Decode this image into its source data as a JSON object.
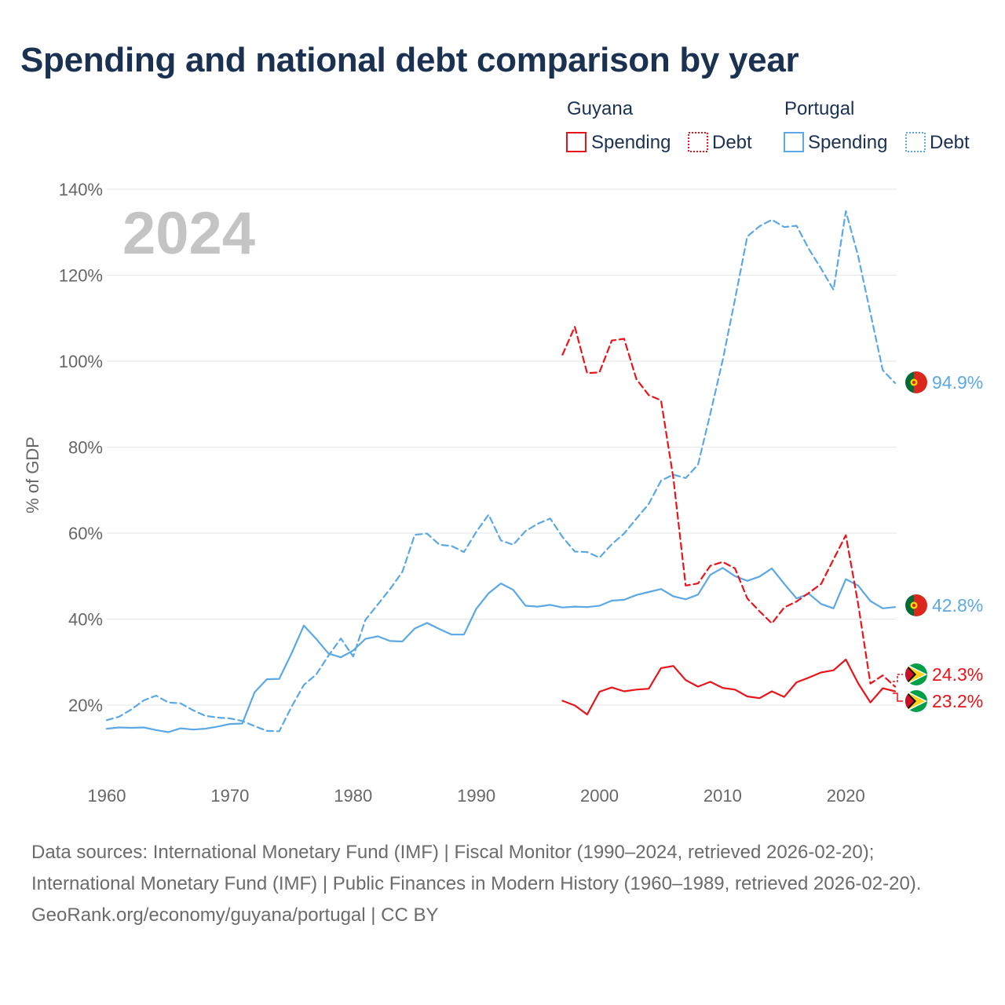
{
  "title": "Spending and national debt comparison by year",
  "year_overlay": "2024",
  "legend": {
    "groups": [
      {
        "name": "Guyana",
        "color": "#e8141a",
        "items": [
          {
            "label": "Spending",
            "style": "solid"
          },
          {
            "label": "Debt",
            "style": "dotted"
          }
        ]
      },
      {
        "name": "Portugal",
        "color": "#5ba8e5",
        "items": [
          {
            "label": "Spending",
            "style": "solid"
          },
          {
            "label": "Debt",
            "style": "dotted"
          }
        ]
      }
    ]
  },
  "chart_data": {
    "type": "line",
    "title": "Spending and national debt comparison by year",
    "xlabel": "",
    "ylabel": "% of GDP",
    "xlim": [
      1960,
      2024
    ],
    "ylim": [
      8,
      145
    ],
    "x_ticks": [
      1960,
      1970,
      1980,
      1990,
      2000,
      2010,
      2020
    ],
    "y_ticks": [
      {
        "value": 20,
        "label": "20%"
      },
      {
        "value": 40,
        "label": "40%"
      },
      {
        "value": 60,
        "label": "60%"
      },
      {
        "value": 80,
        "label": "80%"
      },
      {
        "value": 100,
        "label": "100%"
      },
      {
        "value": 120,
        "label": "120%"
      },
      {
        "value": 140,
        "label": "140%"
      }
    ],
    "grid": true,
    "series": [
      {
        "name": "Portugal Spending",
        "country": "Portugal",
        "measure": "Spending",
        "color": "#5ba8e5",
        "dash": false,
        "end_label": "42.8%",
        "points": [
          [
            1960,
            14.5
          ],
          [
            1961,
            14.8
          ],
          [
            1962,
            14.7
          ],
          [
            1963,
            14.8
          ],
          [
            1964,
            14.2
          ],
          [
            1965,
            13.7
          ],
          [
            1966,
            14.6
          ],
          [
            1967,
            14.3
          ],
          [
            1968,
            14.5
          ],
          [
            1969,
            15.0
          ],
          [
            1970,
            15.6
          ],
          [
            1971,
            15.7
          ],
          [
            1972,
            23.0
          ],
          [
            1973,
            26.0
          ],
          [
            1974,
            26.1
          ],
          [
            1975,
            32.0
          ],
          [
            1976,
            38.5
          ],
          [
            1977,
            35.4
          ],
          [
            1978,
            32.0
          ],
          [
            1979,
            31.1
          ],
          [
            1980,
            32.7
          ],
          [
            1981,
            35.4
          ],
          [
            1982,
            36.0
          ],
          [
            1983,
            34.9
          ],
          [
            1984,
            34.8
          ],
          [
            1985,
            37.8
          ],
          [
            1986,
            39.1
          ],
          [
            1987,
            37.7
          ],
          [
            1988,
            36.4
          ],
          [
            1989,
            36.4
          ],
          [
            1990,
            42.4
          ],
          [
            1991,
            46.0
          ],
          [
            1992,
            48.3
          ],
          [
            1993,
            46.8
          ],
          [
            1994,
            43.1
          ],
          [
            1995,
            42.9
          ],
          [
            1996,
            43.3
          ],
          [
            1997,
            42.7
          ],
          [
            1998,
            42.9
          ],
          [
            1999,
            42.8
          ],
          [
            2000,
            43.1
          ],
          [
            2001,
            44.3
          ],
          [
            2002,
            44.5
          ],
          [
            2003,
            45.6
          ],
          [
            2004,
            46.3
          ],
          [
            2005,
            47.0
          ],
          [
            2006,
            45.3
          ],
          [
            2007,
            44.6
          ],
          [
            2008,
            45.7
          ],
          [
            2009,
            50.3
          ],
          [
            2010,
            51.9
          ],
          [
            2011,
            50.0
          ],
          [
            2012,
            48.9
          ],
          [
            2013,
            49.9
          ],
          [
            2014,
            51.8
          ],
          [
            2015,
            48.2
          ],
          [
            2016,
            44.8
          ],
          [
            2017,
            45.9
          ],
          [
            2018,
            43.5
          ],
          [
            2019,
            42.5
          ],
          [
            2020,
            49.3
          ],
          [
            2021,
            47.8
          ],
          [
            2022,
            44.2
          ],
          [
            2023,
            42.5
          ],
          [
            2024,
            42.8
          ]
        ]
      },
      {
        "name": "Portugal Debt",
        "country": "Portugal",
        "measure": "Debt",
        "color": "#5ba8e5",
        "dash": true,
        "end_label": "94.9%",
        "points": [
          [
            1960,
            16.5
          ],
          [
            1961,
            17.3
          ],
          [
            1962,
            19.0
          ],
          [
            1963,
            21.1
          ],
          [
            1964,
            22.2
          ],
          [
            1965,
            20.6
          ],
          [
            1966,
            20.4
          ],
          [
            1967,
            18.8
          ],
          [
            1968,
            17.5
          ],
          [
            1969,
            17.1
          ],
          [
            1970,
            16.9
          ],
          [
            1971,
            16.3
          ],
          [
            1972,
            15.1
          ],
          [
            1973,
            14.0
          ],
          [
            1974,
            13.9
          ],
          [
            1975,
            19.6
          ],
          [
            1976,
            24.7
          ],
          [
            1977,
            27.1
          ],
          [
            1978,
            31.5
          ],
          [
            1979,
            35.5
          ],
          [
            1980,
            31.3
          ],
          [
            1981,
            39.8
          ],
          [
            1982,
            43.4
          ],
          [
            1983,
            47.0
          ],
          [
            1984,
            51.0
          ],
          [
            1985,
            59.6
          ],
          [
            1986,
            59.9
          ],
          [
            1987,
            57.3
          ],
          [
            1988,
            57.0
          ],
          [
            1989,
            55.6
          ],
          [
            1990,
            60.3
          ],
          [
            1991,
            64.3
          ],
          [
            1992,
            58.3
          ],
          [
            1993,
            57.3
          ],
          [
            1994,
            60.5
          ],
          [
            1995,
            62.2
          ],
          [
            1996,
            63.4
          ],
          [
            1997,
            59.1
          ],
          [
            1998,
            55.7
          ],
          [
            1999,
            55.6
          ],
          [
            2000,
            54.3
          ],
          [
            2001,
            57.4
          ],
          [
            2002,
            59.9
          ],
          [
            2003,
            63.4
          ],
          [
            2004,
            66.8
          ],
          [
            2005,
            72.2
          ],
          [
            2006,
            73.6
          ],
          [
            2007,
            72.8
          ],
          [
            2008,
            75.9
          ],
          [
            2009,
            87.8
          ],
          [
            2010,
            100.2
          ],
          [
            2011,
            114.4
          ],
          [
            2012,
            129.0
          ],
          [
            2013,
            131.4
          ],
          [
            2014,
            132.9
          ],
          [
            2015,
            131.2
          ],
          [
            2016,
            131.5
          ],
          [
            2017,
            126.1
          ],
          [
            2018,
            121.5
          ],
          [
            2019,
            116.6
          ],
          [
            2020,
            134.9
          ],
          [
            2021,
            124.5
          ],
          [
            2022,
            111.2
          ],
          [
            2023,
            97.9
          ],
          [
            2024,
            94.9
          ]
        ]
      },
      {
        "name": "Guyana Spending",
        "country": "Guyana",
        "measure": "Spending",
        "color": "#e8141a",
        "dash": false,
        "end_label": "23.2%",
        "points": [
          [
            1997,
            21.0
          ],
          [
            1998,
            19.9
          ],
          [
            1999,
            17.8
          ],
          [
            2000,
            23.1
          ],
          [
            2001,
            24.1
          ],
          [
            2002,
            23.2
          ],
          [
            2003,
            23.6
          ],
          [
            2004,
            23.8
          ],
          [
            2005,
            28.6
          ],
          [
            2006,
            29.1
          ],
          [
            2007,
            25.8
          ],
          [
            2008,
            24.3
          ],
          [
            2009,
            25.4
          ],
          [
            2010,
            24.0
          ],
          [
            2011,
            23.6
          ],
          [
            2012,
            22.0
          ],
          [
            2013,
            21.6
          ],
          [
            2014,
            23.2
          ],
          [
            2015,
            21.9
          ],
          [
            2016,
            25.3
          ],
          [
            2017,
            26.4
          ],
          [
            2018,
            27.6
          ],
          [
            2019,
            28.1
          ],
          [
            2020,
            30.6
          ],
          [
            2021,
            25.1
          ],
          [
            2022,
            20.6
          ],
          [
            2023,
            23.9
          ],
          [
            2024,
            23.2
          ]
        ]
      },
      {
        "name": "Guyana Debt",
        "country": "Guyana",
        "measure": "Debt",
        "color": "#e8141a",
        "dash": true,
        "end_label": "24.3%",
        "points": [
          [
            1997,
            101.5
          ],
          [
            1998,
            108.0
          ],
          [
            1999,
            97.2
          ],
          [
            2000,
            97.4
          ],
          [
            2001,
            104.8
          ],
          [
            2002,
            105.2
          ],
          [
            2003,
            95.8
          ],
          [
            2004,
            92.1
          ],
          [
            2005,
            90.9
          ],
          [
            2006,
            72.8
          ],
          [
            2007,
            47.8
          ],
          [
            2008,
            48.3
          ],
          [
            2009,
            52.4
          ],
          [
            2010,
            53.3
          ],
          [
            2011,
            51.8
          ],
          [
            2012,
            44.8
          ],
          [
            2013,
            41.8
          ],
          [
            2014,
            39.0
          ],
          [
            2015,
            42.7
          ],
          [
            2016,
            44.1
          ],
          [
            2017,
            46.1
          ],
          [
            2018,
            48.2
          ],
          [
            2019,
            53.9
          ],
          [
            2020,
            59.5
          ],
          [
            2021,
            43.6
          ],
          [
            2022,
            25.0
          ],
          [
            2023,
            26.9
          ],
          [
            2024,
            24.3
          ]
        ]
      }
    ]
  },
  "footer": {
    "sources": "Data sources: International Monetary Fund (IMF) | Fiscal Monitor (1990–2024, retrieved 2026-02-20); International Monetary Fund (IMF) | Public Finances in Modern History (1960–1989, retrieved 2026-02-20).",
    "credit": "GeoRank.org/economy/guyana/portugal | CC BY"
  }
}
